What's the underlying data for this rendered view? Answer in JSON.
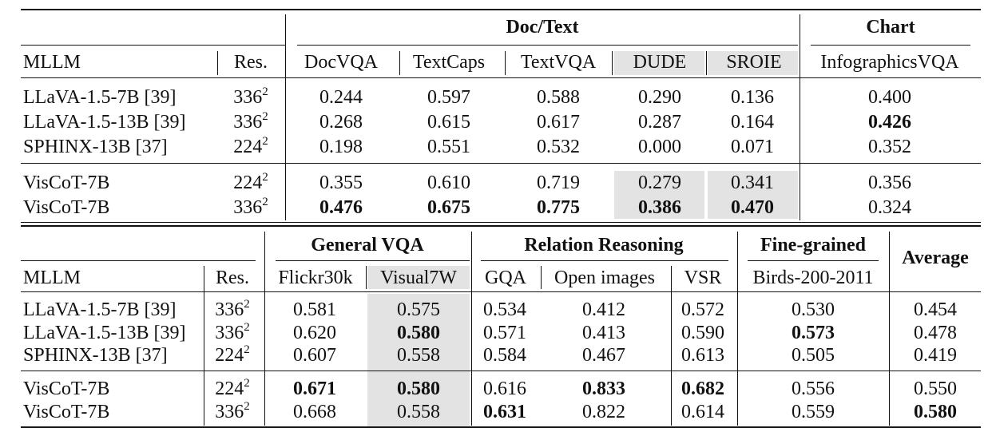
{
  "table1": {
    "headers": {
      "mllm": "MLLM",
      "res": "Res.",
      "group_doc": "Doc/Text",
      "group_chart": "Chart",
      "columns": [
        "DocVQA",
        "TextCaps",
        "TextVQA",
        "DUDE",
        "SROIE",
        "InfographicsVQA"
      ]
    },
    "rows": [
      {
        "model": "LLaVA-1.5-7B [39]",
        "res": "336",
        "values": [
          "0.244",
          "0.597",
          "0.588",
          "0.290",
          "0.136",
          "0.400"
        ]
      },
      {
        "model": "LLaVA-1.5-13B [39]",
        "res": "336",
        "values": [
          "0.268",
          "0.615",
          "0.617",
          "0.287",
          "0.164",
          "0.426"
        ]
      },
      {
        "model": "SPHINX-13B [37]",
        "res": "224",
        "values": [
          "0.198",
          "0.551",
          "0.532",
          "0.000",
          "0.071",
          "0.352"
        ]
      },
      {
        "model": "VisCoT-7B",
        "res": "224",
        "values": [
          "0.355",
          "0.610",
          "0.719",
          "0.279",
          "0.341",
          "0.356"
        ]
      },
      {
        "model": "VisCoT-7B",
        "res": "336",
        "values": [
          "0.476",
          "0.675",
          "0.775",
          "0.386",
          "0.470",
          "0.324"
        ]
      }
    ]
  },
  "table2": {
    "headers": {
      "mllm": "MLLM",
      "res": "Res.",
      "group_general": "General VQA",
      "group_relation": "Relation Reasoning",
      "group_fine": "Fine-grained",
      "average": "Average",
      "columns": [
        "Flickr30k",
        "Visual7W",
        "GQA",
        "Open images",
        "VSR",
        "Birds-200-2011"
      ]
    },
    "rows": [
      {
        "model": "LLaVA-1.5-7B [39]",
        "res": "336",
        "values": [
          "0.581",
          "0.575",
          "0.534",
          "0.412",
          "0.572",
          "0.530",
          "0.454"
        ]
      },
      {
        "model": "LLaVA-1.5-13B [39]",
        "res": "336",
        "values": [
          "0.620",
          "0.580",
          "0.571",
          "0.413",
          "0.590",
          "0.573",
          "0.478"
        ]
      },
      {
        "model": "SPHINX-13B [37]",
        "res": "224",
        "values": [
          "0.607",
          "0.558",
          "0.584",
          "0.467",
          "0.613",
          "0.505",
          "0.419"
        ]
      },
      {
        "model": "VisCoT-7B",
        "res": "224",
        "values": [
          "0.671",
          "0.580",
          "0.616",
          "0.833",
          "0.682",
          "0.556",
          "0.550"
        ]
      },
      {
        "model": "VisCoT-7B",
        "res": "336",
        "values": [
          "0.668",
          "0.558",
          "0.631",
          "0.822",
          "0.614",
          "0.559",
          "0.580"
        ]
      }
    ]
  },
  "res_exponent": "2"
}
